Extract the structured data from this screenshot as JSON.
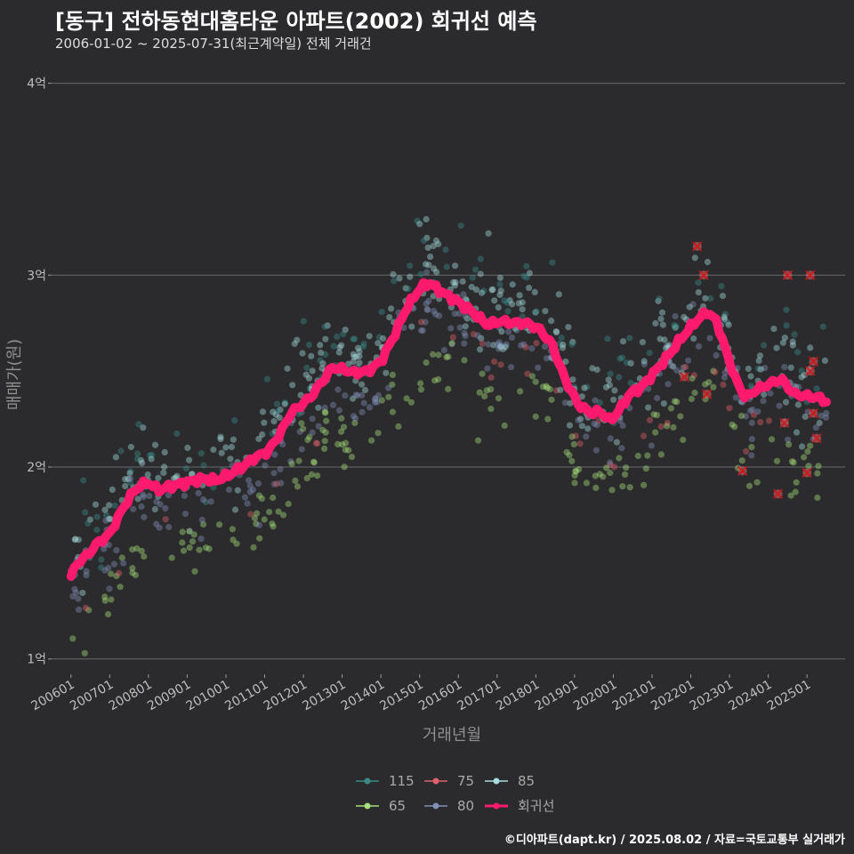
{
  "header": {
    "title": "[동구] 전하동현대홈타운 아파트(2002) 회귀선 예측",
    "subtitle": "2006-01-02 ~ 2025-07-31(최근계약일) 전체 거래건"
  },
  "caption": "©디아파트(dapt.kr) / 2025.08.02 / 자료=국토교통부 실거래가",
  "chart_data": {
    "type": "scatter",
    "xlabel": "거래년월",
    "ylabel": "매매가(원)",
    "x_range": [
      "2005-07",
      "2026-03"
    ],
    "ylim": [
      0.92,
      4.1
    ],
    "y_unit": "억",
    "x_ticks": [
      "200601",
      "200701",
      "200801",
      "200901",
      "201001",
      "201101",
      "201201",
      "201301",
      "201401",
      "201501",
      "201601",
      "201701",
      "201801",
      "201901",
      "202001",
      "202101",
      "202201",
      "202301",
      "202401",
      "202501"
    ],
    "y_ticks": [
      {
        "value": 1,
        "label": "1억"
      },
      {
        "value": 2,
        "label": "2억"
      },
      {
        "value": 3,
        "label": "3억"
      },
      {
        "value": 4,
        "label": "4억"
      }
    ],
    "grid": true,
    "legend_position": "bottom",
    "legend": [
      {
        "name": "115",
        "color": "#3a8a8a"
      },
      {
        "name": "75",
        "color": "#e0606a"
      },
      {
        "name": "85",
        "color": "#a8dde0"
      },
      {
        "name": "65",
        "color": "#a6e07a"
      },
      {
        "name": "80",
        "color": "#8090b8"
      },
      {
        "name": "회귀선",
        "color": "#ff1a6e"
      }
    ],
    "regression": [
      [
        "2006-01",
        1.43
      ],
      [
        "2006-03",
        1.5
      ],
      [
        "2006-06",
        1.54
      ],
      [
        "2006-09",
        1.6
      ],
      [
        "2007-01",
        1.65
      ],
      [
        "2007-04",
        1.75
      ],
      [
        "2007-07",
        1.84
      ],
      [
        "2007-10",
        1.9
      ],
      [
        "2008-01",
        1.92
      ],
      [
        "2008-04",
        1.88
      ],
      [
        "2008-08",
        1.9
      ],
      [
        "2009-01",
        1.92
      ],
      [
        "2009-06",
        1.94
      ],
      [
        "2009-10",
        1.93
      ],
      [
        "2010-02",
        1.96
      ],
      [
        "2010-06",
        2.0
      ],
      [
        "2010-10",
        2.05
      ],
      [
        "2011-02",
        2.08
      ],
      [
        "2011-06",
        2.18
      ],
      [
        "2011-09",
        2.28
      ],
      [
        "2011-12",
        2.32
      ],
      [
        "2012-03",
        2.36
      ],
      [
        "2012-07",
        2.45
      ],
      [
        "2012-10",
        2.52
      ],
      [
        "2013-01",
        2.51
      ],
      [
        "2013-05",
        2.49
      ],
      [
        "2013-09",
        2.5
      ],
      [
        "2014-01",
        2.55
      ],
      [
        "2014-05",
        2.68
      ],
      [
        "2014-09",
        2.83
      ],
      [
        "2015-01",
        2.93
      ],
      [
        "2015-04",
        2.96
      ],
      [
        "2015-08",
        2.91
      ],
      [
        "2016-01",
        2.86
      ],
      [
        "2016-06",
        2.8
      ],
      [
        "2016-10",
        2.74
      ],
      [
        "2017-02",
        2.76
      ],
      [
        "2017-06",
        2.75
      ],
      [
        "2017-10",
        2.75
      ],
      [
        "2018-02",
        2.72
      ],
      [
        "2018-06",
        2.64
      ],
      [
        "2018-10",
        2.46
      ],
      [
        "2019-02",
        2.33
      ],
      [
        "2019-06",
        2.28
      ],
      [
        "2019-09",
        2.29
      ],
      [
        "2019-12",
        2.24
      ],
      [
        "2020-03",
        2.3
      ],
      [
        "2020-06",
        2.38
      ],
      [
        "2020-10",
        2.42
      ],
      [
        "2021-02",
        2.5
      ],
      [
        "2021-06",
        2.58
      ],
      [
        "2021-10",
        2.67
      ],
      [
        "2022-02",
        2.75
      ],
      [
        "2022-06",
        2.81
      ],
      [
        "2022-09",
        2.76
      ],
      [
        "2022-12",
        2.6
      ],
      [
        "2023-03",
        2.45
      ],
      [
        "2023-06",
        2.36
      ],
      [
        "2023-09",
        2.4
      ],
      [
        "2024-01",
        2.43
      ],
      [
        "2024-05",
        2.46
      ],
      [
        "2024-09",
        2.38
      ],
      [
        "2025-01",
        2.37
      ],
      [
        "2025-05",
        2.36
      ],
      [
        "2025-07",
        2.34
      ]
    ],
    "scatter_seed": 20250802
  }
}
